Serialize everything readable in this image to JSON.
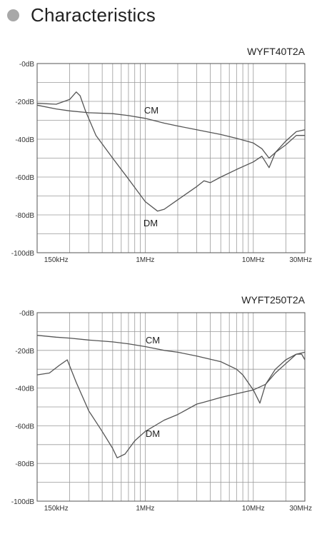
{
  "heading": {
    "text": "Characteristics",
    "bullet_color": "#a8a8a8"
  },
  "chart_data": [
    {
      "type": "line",
      "title": "WYFT40T2A",
      "x_scale": "log",
      "xlim_hz": [
        100000,
        30000000
      ],
      "ylim": [
        -100,
        0
      ],
      "y_ticks": [
        0,
        -20,
        -40,
        -60,
        -80,
        -100
      ],
      "y_tick_labels": [
        "-0dB",
        "-20dB",
        "-40dB",
        "-60dB",
        "-80dB",
        "-100dB"
      ],
      "x_ticks": [
        150000,
        1000000,
        10000000,
        30000000
      ],
      "x_tick_labels": [
        "150kHz",
        "1MHz",
        "10MHz",
        "30MHz"
      ],
      "grid": true,
      "series": [
        {
          "name": "CM",
          "x": [
            100000,
            150000,
            200000,
            300000,
            500000,
            700000,
            1000000,
            1500000,
            2000000,
            3000000,
            5000000,
            7000000,
            10000000,
            12000000,
            14000000,
            16000000,
            20000000,
            25000000,
            30000000
          ],
          "y": [
            -22,
            -24,
            -25,
            -26,
            -26.5,
            -27.5,
            -29,
            -31.5,
            -33,
            -35,
            -37.5,
            -39.5,
            -42,
            -45,
            -50,
            -47,
            -41,
            -36,
            -35
          ]
        },
        {
          "name": "DM",
          "x": [
            100000,
            150000,
            200000,
            230000,
            250000,
            280000,
            350000,
            500000,
            700000,
            1000000,
            1300000,
            1500000,
            2000000,
            3000000,
            3500000,
            4000000,
            5000000,
            7000000,
            10000000,
            12000000,
            14000000,
            16000000,
            20000000,
            25000000,
            30000000
          ],
          "y": [
            -21,
            -21.5,
            -19,
            -15,
            -17,
            -25,
            -38,
            -50,
            -61,
            -73,
            -78,
            -77,
            -72,
            -65,
            -62,
            -63,
            -60,
            -56,
            -52,
            -49,
            -55,
            -47,
            -43,
            -38,
            -38
          ]
        }
      ]
    },
    {
      "type": "line",
      "title": "WYFT250T2A",
      "x_scale": "log",
      "xlim_hz": [
        100000,
        30000000
      ],
      "ylim": [
        -100,
        0
      ],
      "y_ticks": [
        0,
        -20,
        -40,
        -60,
        -80,
        -100
      ],
      "y_tick_labels": [
        "-0dB",
        "-20dB",
        "-40dB",
        "-60dB",
        "-80dB",
        "-100dB"
      ],
      "x_ticks": [
        150000,
        1000000,
        10000000,
        30000000
      ],
      "x_tick_labels": [
        "150kHz",
        "1MHz",
        "10MHz",
        "30MHz"
      ],
      "grid": true,
      "series": [
        {
          "name": "CM",
          "x": [
            100000,
            150000,
            200000,
            300000,
            500000,
            700000,
            1000000,
            1500000,
            2000000,
            3000000,
            5000000,
            7000000,
            8000000,
            10000000,
            11500000,
            13000000,
            16000000,
            20000000,
            25000000,
            30000000
          ],
          "y": [
            -12,
            -13,
            -13.5,
            -14.5,
            -15.5,
            -16.5,
            -18,
            -20,
            -21,
            -23,
            -26,
            -30,
            -33,
            -41,
            -48,
            -38,
            -30,
            -25,
            -22,
            -21
          ]
        },
        {
          "name": "DM",
          "x": [
            100000,
            130000,
            160000,
            190000,
            230000,
            300000,
            400000,
            500000,
            550000,
            650000,
            800000,
            1000000,
            1500000,
            2000000,
            3000000,
            3500000,
            5000000,
            7000000,
            10000000,
            13000000,
            16000000,
            20000000,
            25000000,
            28000000,
            30000000
          ],
          "y": [
            -33,
            -32,
            -28,
            -25,
            -37,
            -52,
            -63,
            -72,
            -77,
            -75,
            -68,
            -63,
            -57,
            -54,
            -48.5,
            -47.5,
            -45,
            -43,
            -41,
            -38,
            -32,
            -27,
            -22,
            -22,
            -25
          ]
        }
      ]
    }
  ]
}
